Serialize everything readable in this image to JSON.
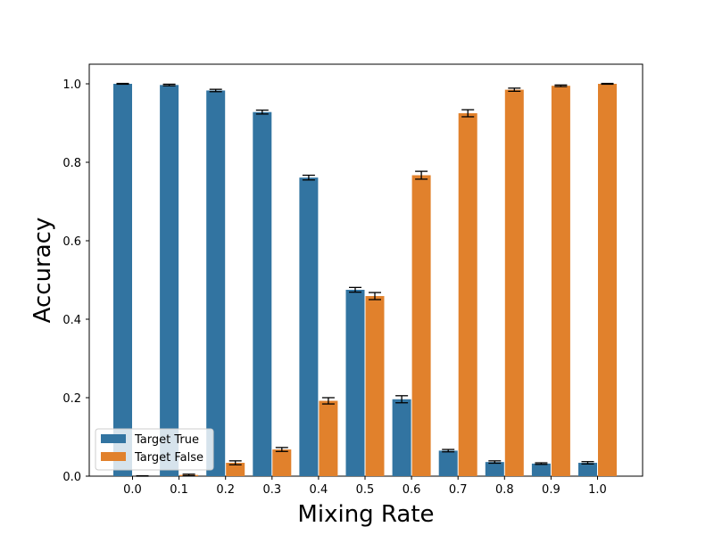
{
  "chart_data": {
    "type": "bar",
    "title": "",
    "xlabel": "Mixing Rate",
    "ylabel": "Accuracy",
    "categories": [
      "0.0",
      "0.1",
      "0.2",
      "0.3",
      "0.4",
      "0.5",
      "0.6",
      "0.7",
      "0.8",
      "0.9",
      "1.0"
    ],
    "ylim": [
      0,
      1.05
    ],
    "yticks": [
      "0.0",
      "0.2",
      "0.4",
      "0.6",
      "0.8",
      "1.0"
    ],
    "legend_position": "lower-left",
    "grid": false,
    "series": [
      {
        "name": "Target True",
        "color": "#3274a1",
        "values": [
          1.0,
          0.997,
          0.983,
          0.928,
          0.761,
          0.475,
          0.196,
          0.065,
          0.036,
          0.032,
          0.034
        ],
        "errors": [
          0.001,
          0.002,
          0.003,
          0.005,
          0.006,
          0.006,
          0.009,
          0.003,
          0.003,
          0.002,
          0.003
        ]
      },
      {
        "name": "Target False",
        "color": "#e1812c",
        "values": [
          0.0,
          0.003,
          0.034,
          0.068,
          0.192,
          0.459,
          0.767,
          0.925,
          0.985,
          0.995,
          1.0
        ],
        "errors": [
          0.001,
          0.002,
          0.005,
          0.005,
          0.008,
          0.009,
          0.01,
          0.009,
          0.004,
          0.002,
          0.001
        ]
      }
    ]
  }
}
